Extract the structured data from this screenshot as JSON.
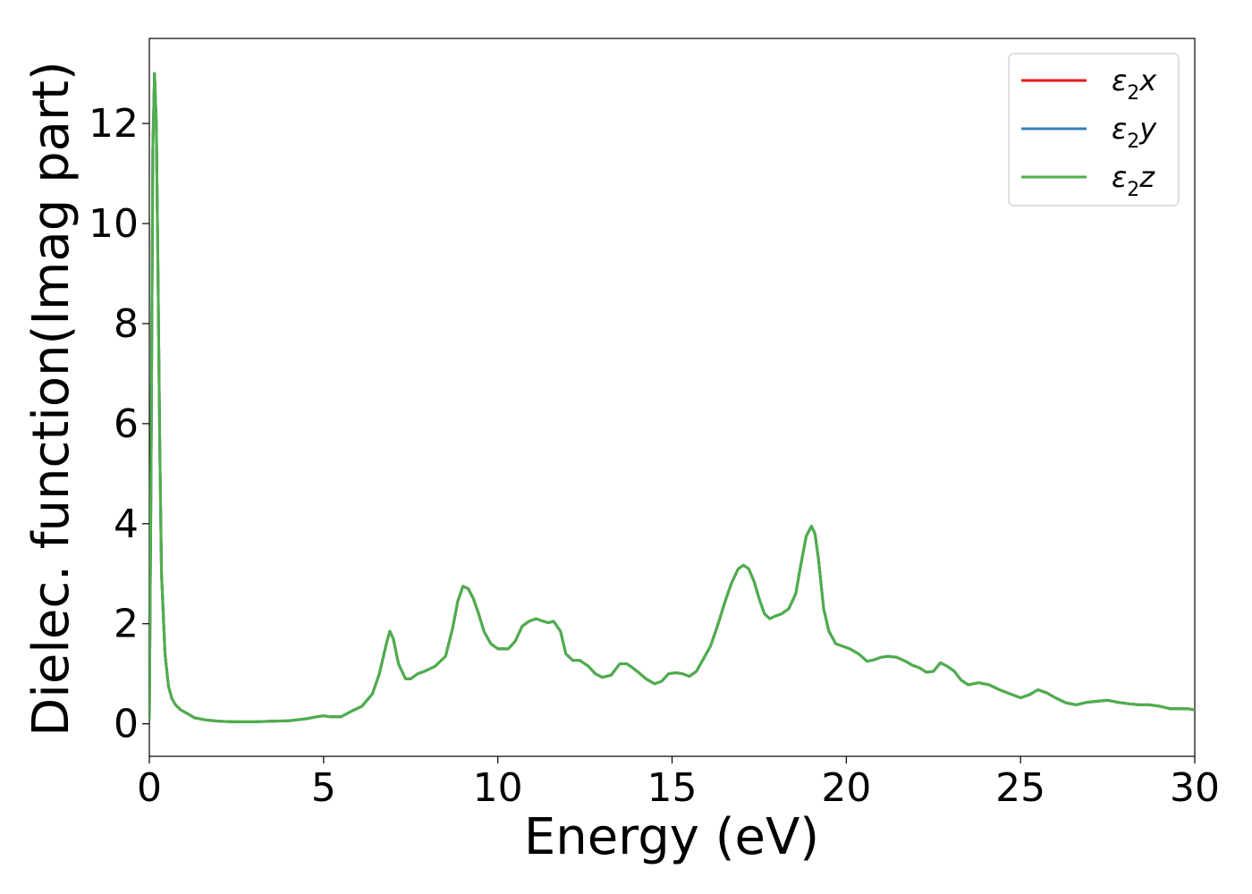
{
  "chart_data": {
    "type": "line",
    "title": "",
    "xlabel": "Energy (eV)",
    "ylabel": "Dielec. function(Imag part)",
    "xlim": [
      0,
      30
    ],
    "ylim": [
      -0.65,
      13.7
    ],
    "xticks": [
      0,
      5,
      10,
      15,
      20,
      25,
      30
    ],
    "yticks": [
      0,
      2,
      4,
      6,
      8,
      10,
      12
    ],
    "grid": false,
    "legend": {
      "placement": "top-right"
    },
    "series": [
      {
        "name": "ε2x",
        "legend_base": "ε",
        "legend_sub": "2",
        "legend_suffix": "x",
        "color": "#e41a1c",
        "x": [
          0,
          0.05,
          0.1,
          0.15,
          0.2,
          0.25,
          0.3,
          0.35,
          0.45,
          0.55,
          0.65,
          0.75,
          0.9,
          1.1,
          1.3,
          1.6,
          2.0,
          2.5,
          3.0,
          3.5,
          4.0,
          4.5,
          4.8,
          5.0,
          5.2,
          5.5,
          5.8,
          6.1,
          6.4,
          6.6,
          6.8,
          6.9,
          7.0,
          7.15,
          7.35,
          7.5,
          7.7,
          7.9,
          8.2,
          8.5,
          8.7,
          8.85,
          9.0,
          9.15,
          9.3,
          9.45,
          9.6,
          9.8,
          10.0,
          10.3,
          10.5,
          10.7,
          10.9,
          11.1,
          11.3,
          11.45,
          11.6,
          11.8,
          11.95,
          12.15,
          12.35,
          12.6,
          12.8,
          13.0,
          13.25,
          13.5,
          13.7,
          13.85,
          14.0,
          14.25,
          14.5,
          14.7,
          14.9,
          15.1,
          15.3,
          15.5,
          15.7,
          15.9,
          16.1,
          16.3,
          16.5,
          16.7,
          16.9,
          17.05,
          17.2,
          17.35,
          17.5,
          17.65,
          17.8,
          17.95,
          18.15,
          18.35,
          18.55,
          18.7,
          18.85,
          19.0,
          19.1,
          19.2,
          19.35,
          19.5,
          19.7,
          19.9,
          20.1,
          20.35,
          20.6,
          20.8,
          21.0,
          21.2,
          21.45,
          21.7,
          21.9,
          22.1,
          22.3,
          22.5,
          22.7,
          22.9,
          23.1,
          23.3,
          23.5,
          23.8,
          24.1,
          24.4,
          24.7,
          25.0,
          25.25,
          25.5,
          25.75,
          26.0,
          26.3,
          26.6,
          26.9,
          27.2,
          27.5,
          27.8,
          28.1,
          28.4,
          28.7,
          29.0,
          29.3,
          29.6,
          29.8,
          30.0
        ],
        "y": [
          0.1,
          5.0,
          11.5,
          13.0,
          12.0,
          9.0,
          5.5,
          3.0,
          1.4,
          0.75,
          0.5,
          0.38,
          0.28,
          0.2,
          0.12,
          0.08,
          0.05,
          0.04,
          0.04,
          0.05,
          0.06,
          0.1,
          0.14,
          0.16,
          0.14,
          0.14,
          0.25,
          0.35,
          0.6,
          1.0,
          1.6,
          1.85,
          1.7,
          1.2,
          0.9,
          0.9,
          1.0,
          1.05,
          1.15,
          1.35,
          1.9,
          2.45,
          2.75,
          2.7,
          2.5,
          2.2,
          1.85,
          1.6,
          1.5,
          1.5,
          1.65,
          1.95,
          2.05,
          2.1,
          2.05,
          2.02,
          2.05,
          1.85,
          1.4,
          1.27,
          1.27,
          1.15,
          1.0,
          0.93,
          0.97,
          1.2,
          1.2,
          1.13,
          1.05,
          0.9,
          0.8,
          0.85,
          1.0,
          1.02,
          1.0,
          0.95,
          1.05,
          1.3,
          1.55,
          1.95,
          2.4,
          2.8,
          3.1,
          3.17,
          3.1,
          2.85,
          2.5,
          2.2,
          2.1,
          2.15,
          2.2,
          2.3,
          2.6,
          3.2,
          3.75,
          3.95,
          3.8,
          3.3,
          2.3,
          1.85,
          1.6,
          1.55,
          1.5,
          1.4,
          1.25,
          1.28,
          1.33,
          1.35,
          1.33,
          1.25,
          1.17,
          1.12,
          1.03,
          1.05,
          1.22,
          1.15,
          1.05,
          0.87,
          0.78,
          0.82,
          0.78,
          0.68,
          0.6,
          0.52,
          0.58,
          0.68,
          0.62,
          0.52,
          0.42,
          0.38,
          0.43,
          0.45,
          0.47,
          0.43,
          0.4,
          0.38,
          0.38,
          0.35,
          0.3,
          0.3,
          0.3,
          0.28
        ]
      },
      {
        "name": "ε2y",
        "legend_base": "ε",
        "legend_sub": "2",
        "legend_suffix": "y",
        "color": "#377eb8",
        "same_as": 0
      },
      {
        "name": "ε2z",
        "legend_base": "ε",
        "legend_sub": "2",
        "legend_suffix": "z",
        "color": "#4daf4a",
        "same_as": 0
      }
    ]
  }
}
